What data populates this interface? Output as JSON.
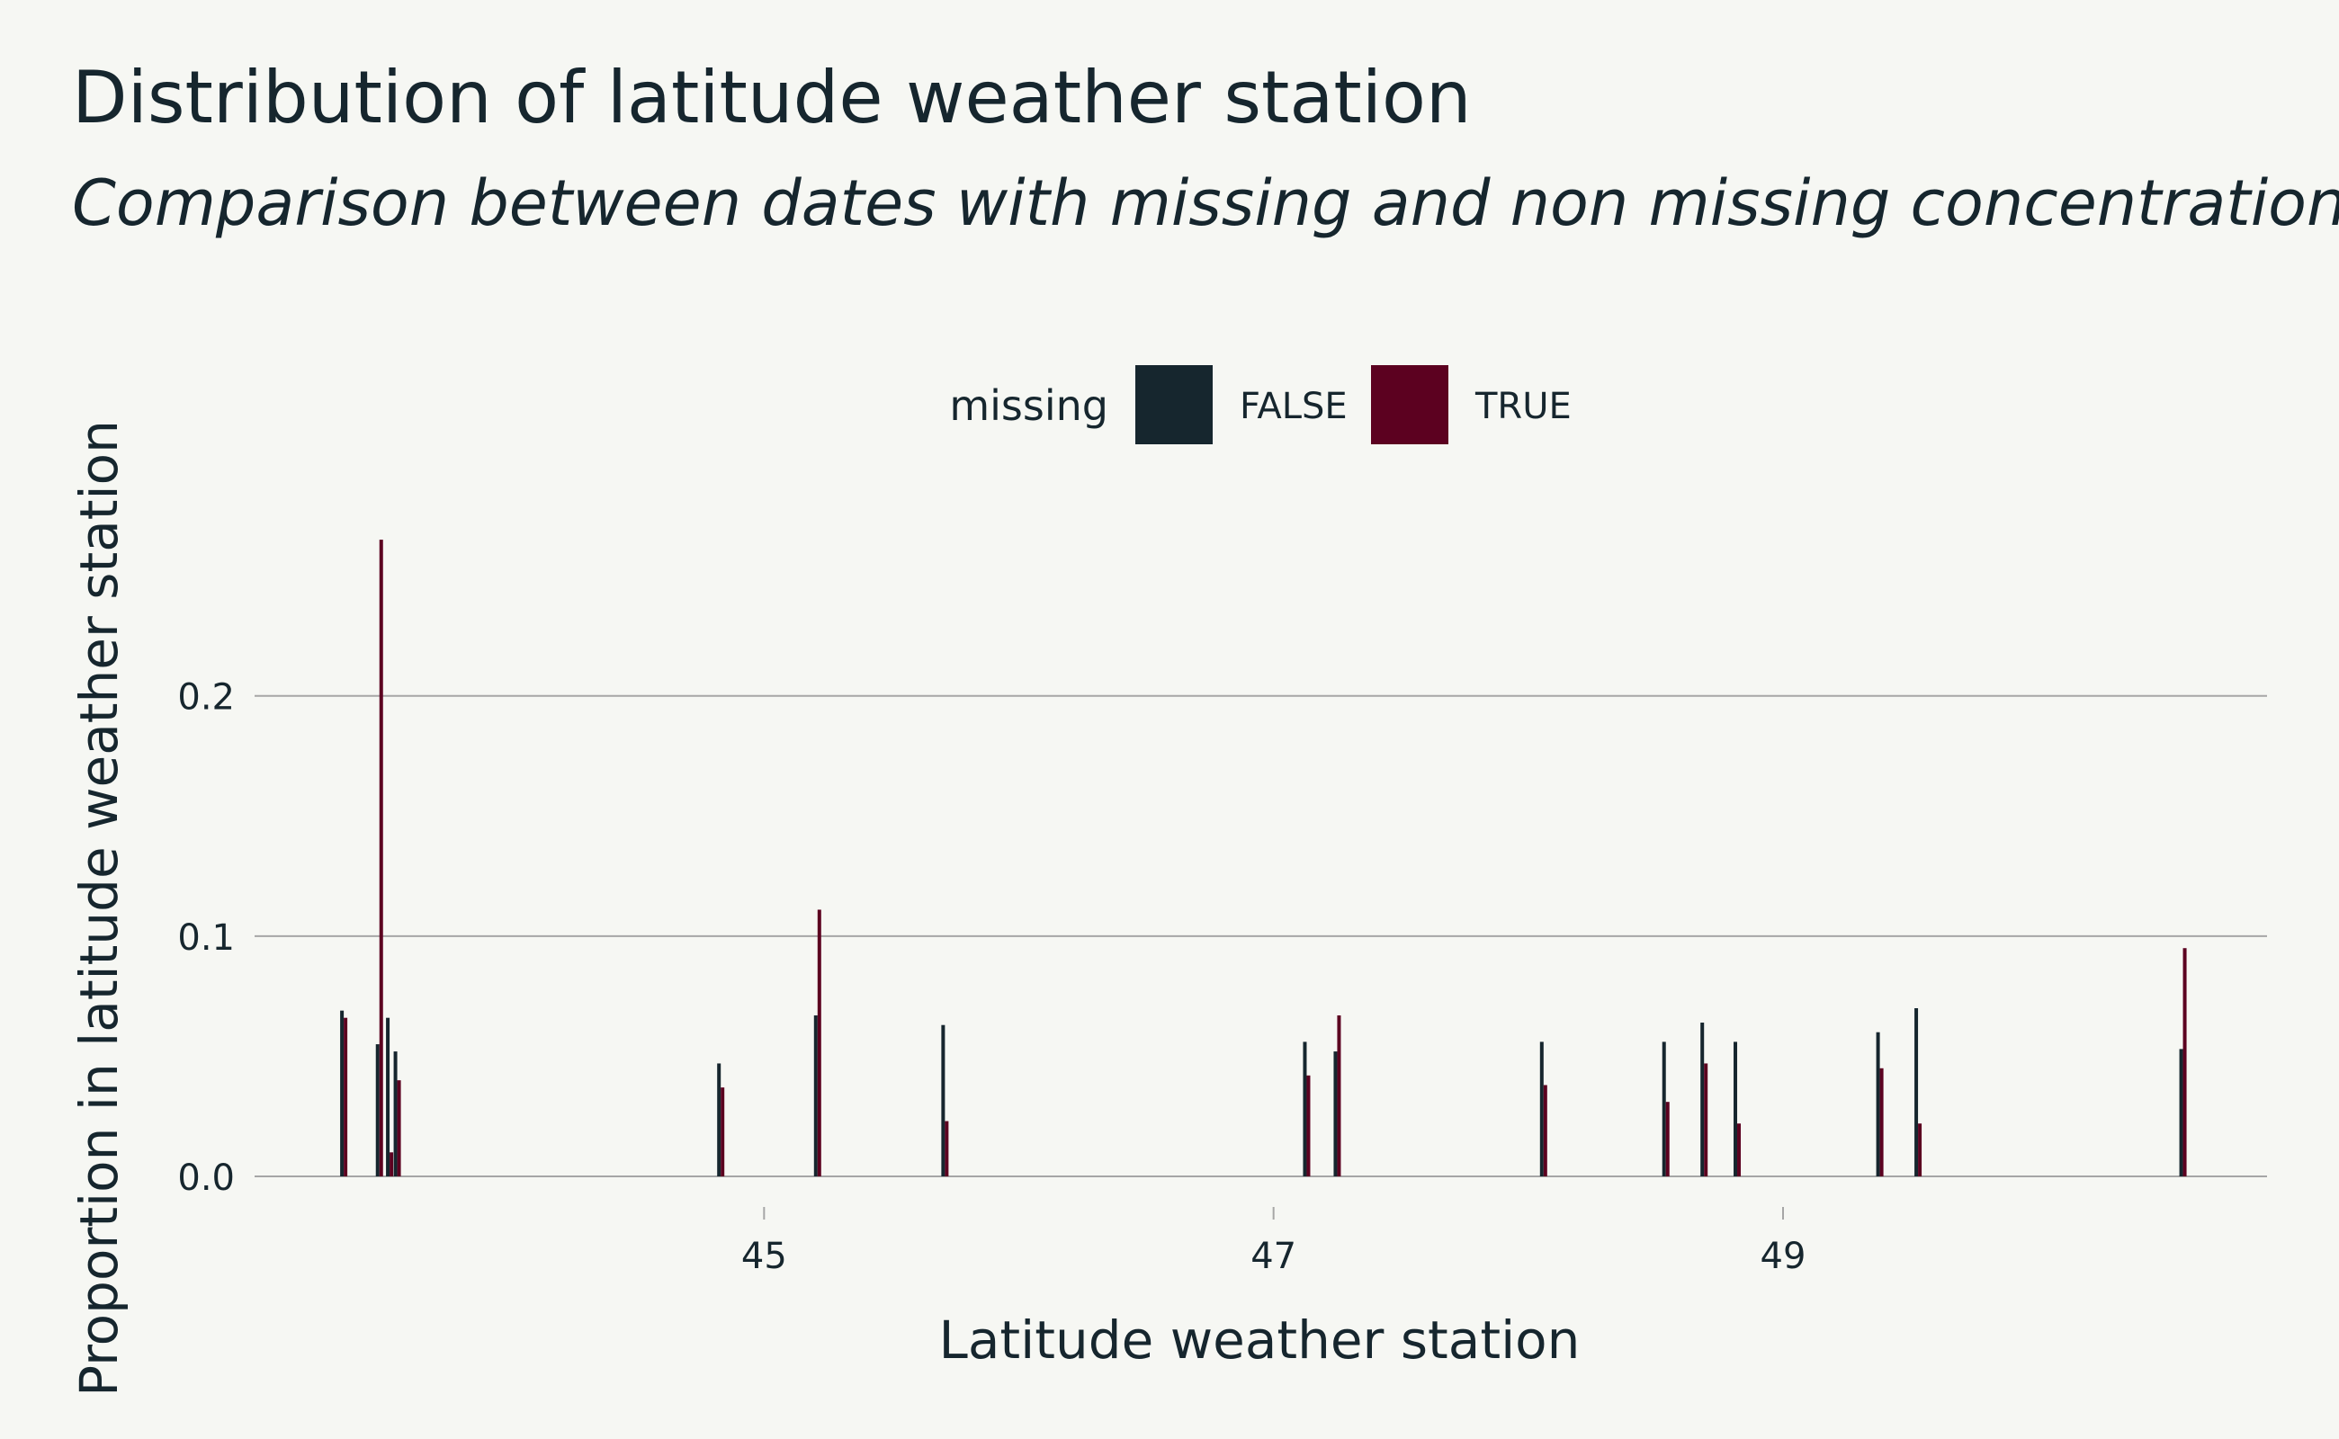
{
  "chart_data": {
    "type": "bar",
    "title": "Distribution of latitude weather station",
    "subtitle": "Comparison between dates with missing and non missing concentrations",
    "xlabel": "Latitude weather station",
    "ylabel": "Proportion in latitude weather station",
    "xlim": [
      43.0,
      50.9
    ],
    "ylim": [
      0,
      0.28
    ],
    "x_ticks": [
      "45",
      "47",
      "49"
    ],
    "y_ticks": [
      "0.0",
      "0.1",
      "0.2"
    ],
    "grid": "horizontal",
    "legend": {
      "title": "missing",
      "placement": "top",
      "entries": [
        "FALSE",
        "TRUE"
      ]
    },
    "colors": {
      "FALSE": "#16262e",
      "TRUE": "#5c0120",
      "background": "#f6f7f3",
      "grid": "#a6a6a6"
    },
    "series": [
      {
        "name": "FALSE",
        "points": [
          [
            43.35,
            0.069
          ],
          [
            43.49,
            0.055
          ],
          [
            43.53,
            0.066
          ],
          [
            43.56,
            0.052
          ],
          [
            44.83,
            0.047
          ],
          [
            45.21,
            0.067
          ],
          [
            45.71,
            0.063
          ],
          [
            47.13,
            0.056
          ],
          [
            47.25,
            0.052
          ],
          [
            48.06,
            0.056
          ],
          [
            48.54,
            0.056
          ],
          [
            48.69,
            0.064
          ],
          [
            48.82,
            0.056
          ],
          [
            49.38,
            0.06
          ],
          [
            49.53,
            0.07
          ],
          [
            50.57,
            0.053
          ]
        ]
      },
      {
        "name": "TRUE",
        "points": [
          [
            43.35,
            0.066
          ],
          [
            43.49,
            0.265
          ],
          [
            43.53,
            0.01
          ],
          [
            43.56,
            0.04
          ],
          [
            44.83,
            0.037
          ],
          [
            45.21,
            0.111
          ],
          [
            45.71,
            0.023
          ],
          [
            47.13,
            0.042
          ],
          [
            47.25,
            0.067
          ],
          [
            48.06,
            0.038
          ],
          [
            48.54,
            0.031
          ],
          [
            48.69,
            0.047
          ],
          [
            48.82,
            0.022
          ],
          [
            49.38,
            0.045
          ],
          [
            49.53,
            0.022
          ],
          [
            50.57,
            0.095
          ]
        ]
      }
    ]
  }
}
